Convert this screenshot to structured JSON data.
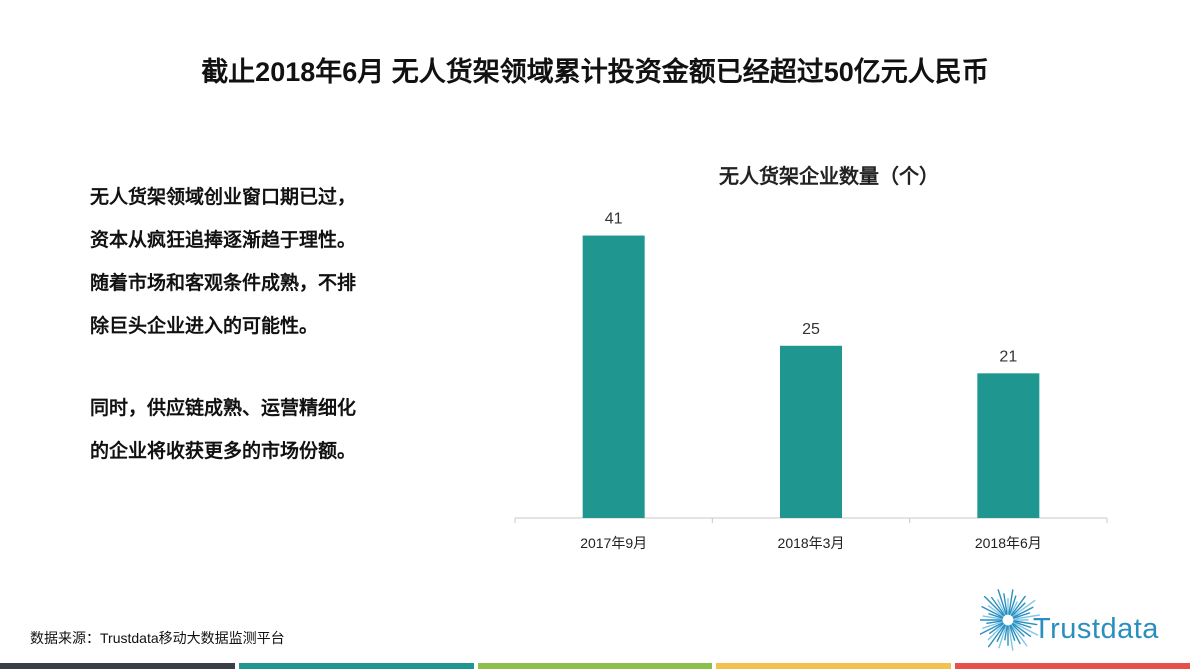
{
  "page": {
    "title": "截止2018年6月 无人货架领域累计投资金额已经超过50亿元人民币",
    "paragraphs": [
      [
        "无人货架领域创业窗口期已过，",
        "资本从疯狂追捧逐渐趋于理性。",
        "随着市场和客观条件成熟，不排",
        "除巨头企业进入的可能性。"
      ],
      [
        "同时，供应链成熟、运营精细化",
        "的企业将收获更多的市场份额。"
      ]
    ],
    "source": "数据来源：Trustdata移动大数据监测平台",
    "logo_text": "Trustdata",
    "footer_colors": [
      "#3a3f47",
      "#1f9690",
      "#8dc04b",
      "#f2c14e",
      "#e6514a"
    ]
  },
  "chart_data": {
    "type": "bar",
    "title": "无人货架企业数量（个）",
    "categories": [
      "2017年9月",
      "2018年3月",
      "2018年6月"
    ],
    "values": [
      41,
      25,
      21
    ],
    "data_labels": [
      "41",
      "25",
      "21"
    ],
    "ylim": [
      0,
      45
    ],
    "grid": false,
    "bar_color": "#1f9690",
    "xlabel": "",
    "ylabel": ""
  }
}
